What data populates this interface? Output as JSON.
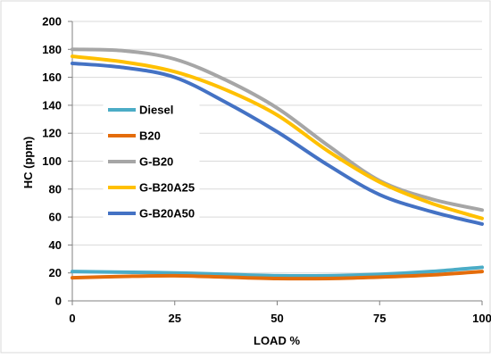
{
  "chart_data": {
    "type": "line",
    "title": "",
    "xlabel": "LOAD %",
    "ylabel": "HC (ppm)",
    "xlim": [
      0,
      100
    ],
    "ylim": [
      0,
      200
    ],
    "x_ticks": [
      0,
      25,
      50,
      75,
      100
    ],
    "x_tick_labels": [
      "0",
      "25",
      "50",
      "75",
      "100"
    ],
    "y_ticks": [
      0,
      20,
      40,
      60,
      80,
      100,
      120,
      140,
      160,
      180,
      200
    ],
    "y_tick_labels": [
      "0",
      "20",
      "40",
      "60",
      "80",
      "100",
      "120",
      "140",
      "160",
      "180",
      "200"
    ],
    "grid": "horizontal major gridlines",
    "legend_position": "left-center",
    "x": [
      0,
      12.5,
      25,
      37.5,
      50,
      62.5,
      75,
      87.5,
      100
    ],
    "series": [
      {
        "name": "Diesel",
        "color": "#4BACC6",
        "values": [
          21,
          20.5,
          20,
          19,
          18,
          18,
          19,
          21,
          24
        ]
      },
      {
        "name": "B20",
        "color": "#E46C0A",
        "values": [
          16.5,
          17.5,
          18,
          17,
          16,
          16,
          17,
          18.5,
          21
        ]
      },
      {
        "name": "G-B20",
        "color": "#A6A6A6",
        "values": [
          180,
          179,
          173,
          158,
          138,
          111,
          86,
          73,
          65
        ]
      },
      {
        "name": "G-B20A25",
        "color": "#FFC000",
        "values": [
          175,
          171,
          164,
          151,
          133,
          107,
          85,
          70,
          59
        ]
      },
      {
        "name": "G-B20A50",
        "color": "#4472C4",
        "values": [
          170,
          167,
          160,
          142,
          121,
          97,
          76,
          64,
          55
        ]
      }
    ]
  }
}
